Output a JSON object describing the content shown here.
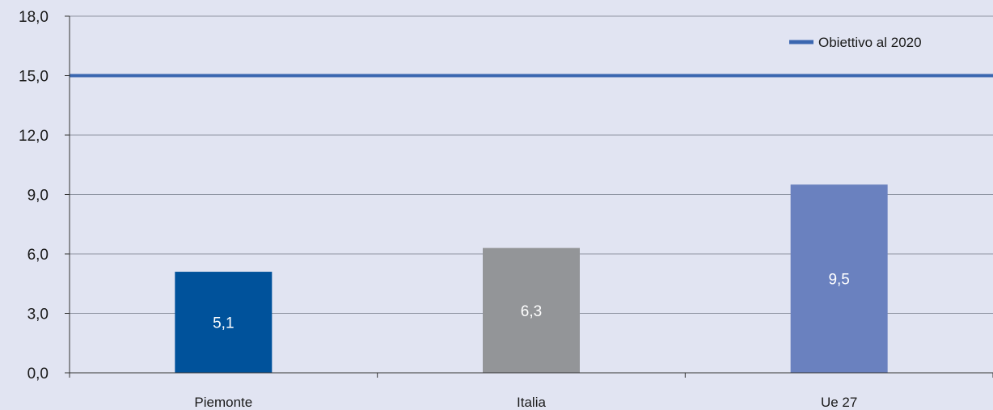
{
  "chart_data": {
    "type": "bar",
    "categories": [
      "Piemonte",
      "Italia",
      "Ue 27"
    ],
    "series": [
      {
        "values": [
          5.1,
          6.3,
          9.5
        ],
        "value_labels": [
          "5,1",
          "6,3",
          "9,5"
        ],
        "colors": [
          "#00529b",
          "#939598",
          "#6a81bf"
        ]
      }
    ],
    "reference_line": {
      "name": "Obiettivo al 2020",
      "value": 15.0,
      "color": "#3a66b0"
    },
    "y_ticks": [
      0,
      3,
      6,
      9,
      12,
      15,
      18
    ],
    "y_tick_labels": [
      "0,0",
      "3,0",
      "6,0",
      "9,0",
      "12,0",
      "15,0",
      "18,0"
    ],
    "ylim": [
      0,
      18
    ],
    "grid": true,
    "legend_position": "top-right",
    "title": "",
    "xlabel": "",
    "ylabel": ""
  },
  "colors": {
    "background": "#e1e4f2",
    "gridline": "#8f95a3",
    "axis": "#333333"
  }
}
